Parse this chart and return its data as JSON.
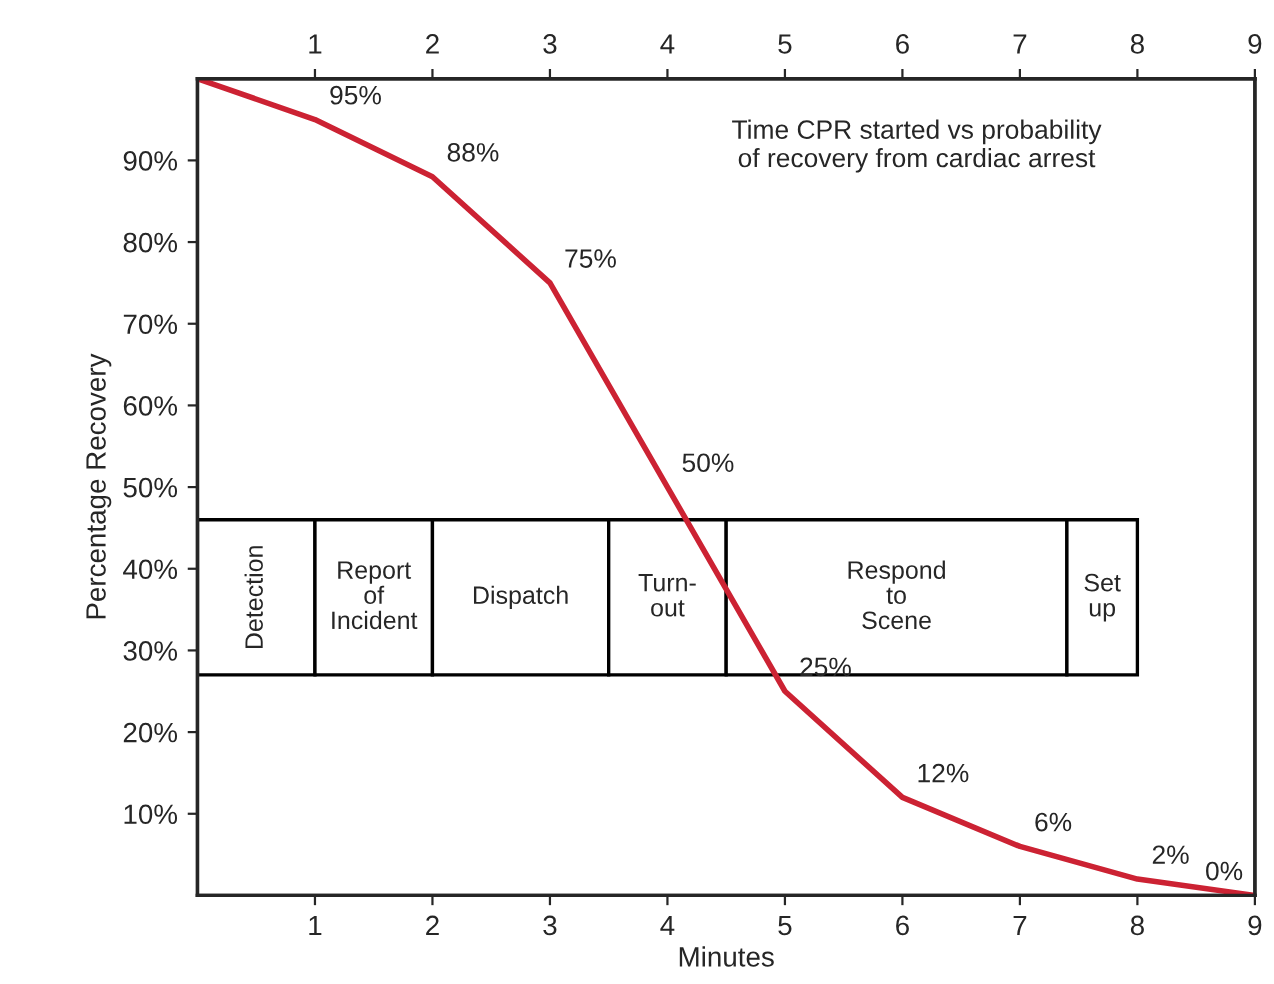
{
  "chart_data": {
    "type": "line",
    "xlabel": "Minutes",
    "ylabel": "Percentage Recovery",
    "annotations": [
      "Time CPR started vs probability\nof recovery from cardiac arrest"
    ],
    "x": [
      0,
      1,
      2,
      3,
      4,
      5,
      6,
      7,
      8,
      9
    ],
    "series": [
      {
        "color": "#cc2233",
        "values": [
          100,
          95,
          88,
          75,
          50,
          25,
          12,
          6,
          2,
          0
        ],
        "value_labels": [
          null,
          "95%",
          "88%",
          "75%",
          "50%",
          "25%",
          "12%",
          "6%",
          "2%",
          "0%"
        ]
      }
    ],
    "xlim": [
      0,
      9
    ],
    "xticks": [
      1,
      2,
      3,
      4,
      5,
      6,
      7,
      8,
      9
    ],
    "x2lim": [
      0,
      9
    ],
    "x2ticks": [
      1,
      2,
      3,
      4,
      5,
      6,
      7,
      8,
      9
    ],
    "ylim": [
      0,
      100
    ],
    "yticks": [
      {
        "value": 10,
        "label": "10%"
      },
      {
        "value": 20,
        "label": "20%"
      },
      {
        "value": 30,
        "label": "30%"
      },
      {
        "value": 40,
        "label": "40%"
      },
      {
        "value": 50,
        "label": "50%"
      },
      {
        "value": 60,
        "label": "60%"
      },
      {
        "value": 70,
        "label": "70%"
      },
      {
        "value": 80,
        "label": "80%"
      },
      {
        "value": 90,
        "label": "90%"
      }
    ],
    "bands": [
      {
        "axis": "x",
        "from": 0,
        "to": 1,
        "label": "Detection"
      },
      {
        "axis": "x",
        "from": 1,
        "to": 2,
        "label": "Report\nof\nIncident"
      },
      {
        "axis": "x",
        "from": 2,
        "to": 3.5,
        "label": "Dispatch"
      },
      {
        "axis": "x",
        "from": 3.5,
        "to": 4.5,
        "label": "Turn-\nout"
      },
      {
        "axis": "x",
        "from": 4.5,
        "to": 7.4,
        "label": "Respond\nto\nScene"
      },
      {
        "axis": "x",
        "from": 7.4,
        "to": 8,
        "label": "Set\nup"
      }
    ],
    "grid": false,
    "legend": false,
    "marker": "none",
    "line_style": "solid"
  }
}
